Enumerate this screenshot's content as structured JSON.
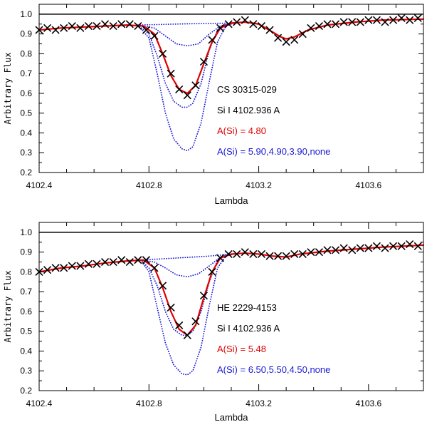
{
  "chart_data": [
    {
      "type": "line",
      "xlabel": "Lambda",
      "ylabel": "Arbitrary Flux",
      "xlim": [
        4102.4,
        4103.8
      ],
      "ylim": [
        0.2,
        1.05
      ],
      "xticks": [
        "4102.4",
        "4102.8",
        "4103.2",
        "4103.6"
      ],
      "yticks": [
        "0.2",
        "0.3",
        "0.4",
        "0.5",
        "0.6",
        "0.7",
        "0.8",
        "0.9",
        "1.0"
      ],
      "continuum": 1.0,
      "annotations": {
        "star": "CS 30315-029",
        "line": "Si I 4102.936 A",
        "best_fit": "A(Si) = 4.80",
        "trials": "A(Si) = 5.90,4.90,3.90,none"
      },
      "series": [
        {
          "name": "observed",
          "style": "x-markers",
          "color": "#000000",
          "x": [
            4102.4,
            4102.43,
            4102.46,
            4102.49,
            4102.52,
            4102.55,
            4102.58,
            4102.61,
            4102.64,
            4102.67,
            4102.7,
            4102.73,
            4102.76,
            4102.79,
            4102.82,
            4102.85,
            4102.88,
            4102.91,
            4102.94,
            4102.97,
            4103.0,
            4103.03,
            4103.06,
            4103.09,
            4103.12,
            4103.15,
            4103.18,
            4103.21,
            4103.24,
            4103.27,
            4103.3,
            4103.33,
            4103.36,
            4103.39,
            4103.42,
            4103.45,
            4103.48,
            4103.51,
            4103.54,
            4103.57,
            4103.6,
            4103.63,
            4103.66,
            4103.69,
            4103.72,
            4103.75,
            4103.78
          ],
          "y": [
            0.92,
            0.93,
            0.92,
            0.93,
            0.94,
            0.93,
            0.94,
            0.94,
            0.95,
            0.94,
            0.95,
            0.95,
            0.94,
            0.92,
            0.89,
            0.8,
            0.7,
            0.62,
            0.59,
            0.64,
            0.76,
            0.87,
            0.93,
            0.95,
            0.96,
            0.97,
            0.95,
            0.94,
            0.92,
            0.88,
            0.86,
            0.87,
            0.9,
            0.93,
            0.94,
            0.95,
            0.95,
            0.96,
            0.96,
            0.96,
            0.97,
            0.97,
            0.96,
            0.97,
            0.98,
            0.97,
            0.98
          ]
        },
        {
          "name": "best fit A(Si)=4.80",
          "style": "solid",
          "color": "#e00000",
          "x": [
            4102.4,
            4102.48,
            4102.56,
            4102.64,
            4102.72,
            4102.78,
            4102.82,
            4102.85,
            4102.88,
            4102.91,
            4102.94,
            4102.97,
            4103.0,
            4103.03,
            4103.06,
            4103.1,
            4103.15,
            4103.2,
            4103.25,
            4103.28,
            4103.3,
            4103.33,
            4103.38,
            4103.45,
            4103.55,
            4103.65,
            4103.8
          ],
          "y": [
            0.92,
            0.93,
            0.935,
            0.94,
            0.945,
            0.94,
            0.9,
            0.8,
            0.69,
            0.62,
            0.6,
            0.64,
            0.75,
            0.86,
            0.93,
            0.955,
            0.96,
            0.95,
            0.91,
            0.885,
            0.875,
            0.885,
            0.92,
            0.945,
            0.96,
            0.97,
            0.975
          ]
        },
        {
          "name": "A(Si)=5.90",
          "style": "dotted",
          "color": "#1a1ad6",
          "x": [
            4102.76,
            4102.8,
            4102.83,
            4102.86,
            4102.89,
            4102.92,
            4102.94,
            4102.96,
            4102.99,
            4103.02,
            4103.05,
            4103.08,
            4103.11
          ],
          "y": [
            0.945,
            0.88,
            0.7,
            0.5,
            0.37,
            0.32,
            0.31,
            0.33,
            0.45,
            0.66,
            0.86,
            0.94,
            0.955
          ]
        },
        {
          "name": "A(Si)=4.90",
          "style": "dotted",
          "color": "#1a1ad6",
          "x": [
            4102.76,
            4102.8,
            4102.83,
            4102.86,
            4102.89,
            4102.92,
            4102.94,
            4102.96,
            4102.99,
            4103.02,
            4103.05,
            4103.08,
            4103.11
          ],
          "y": [
            0.945,
            0.9,
            0.79,
            0.65,
            0.56,
            0.53,
            0.53,
            0.55,
            0.65,
            0.82,
            0.92,
            0.95,
            0.955
          ]
        },
        {
          "name": "A(Si)=3.90",
          "style": "dotted",
          "color": "#1a1ad6",
          "x": [
            4102.76,
            4102.82,
            4102.86,
            4102.9,
            4102.94,
            4102.98,
            4103.02,
            4103.06,
            4103.11
          ],
          "y": [
            0.945,
            0.93,
            0.89,
            0.85,
            0.84,
            0.85,
            0.9,
            0.94,
            0.955
          ]
        },
        {
          "name": "none",
          "style": "dotted",
          "color": "#1a1ad6",
          "x": [
            4102.76,
            4102.9,
            4103.0,
            4103.11
          ],
          "y": [
            0.945,
            0.95,
            0.953,
            0.955
          ]
        }
      ]
    },
    {
      "type": "line",
      "xlabel": "Lambda",
      "ylabel": "Arbitrary Flux",
      "xlim": [
        4102.4,
        4103.8
      ],
      "ylim": [
        0.2,
        1.05
      ],
      "xticks": [
        "4102.4",
        "4102.8",
        "4103.2",
        "4103.6"
      ],
      "yticks": [
        "0.2",
        "0.3",
        "0.4",
        "0.5",
        "0.6",
        "0.7",
        "0.8",
        "0.9",
        "1.0"
      ],
      "continuum": 1.0,
      "annotations": {
        "star": "HE 2229-4153",
        "line": "Si I 4102.936 A",
        "best_fit": "A(Si) = 5.48",
        "trials": "A(Si) = 6.50,5.50,4.50,none"
      },
      "series": [
        {
          "name": "observed",
          "style": "x-markers",
          "color": "#000000",
          "x": [
            4102.4,
            4102.43,
            4102.46,
            4102.49,
            4102.52,
            4102.55,
            4102.58,
            4102.61,
            4102.64,
            4102.67,
            4102.7,
            4102.73,
            4102.76,
            4102.79,
            4102.82,
            4102.85,
            4102.88,
            4102.91,
            4102.94,
            4102.97,
            4103.0,
            4103.03,
            4103.06,
            4103.09,
            4103.12,
            4103.15,
            4103.18,
            4103.21,
            4103.24,
            4103.27,
            4103.3,
            4103.33,
            4103.36,
            4103.39,
            4103.42,
            4103.45,
            4103.48,
            4103.51,
            4103.54,
            4103.57,
            4103.6,
            4103.63,
            4103.66,
            4103.69,
            4103.72,
            4103.75,
            4103.78
          ],
          "y": [
            0.8,
            0.81,
            0.82,
            0.82,
            0.83,
            0.83,
            0.84,
            0.84,
            0.85,
            0.85,
            0.86,
            0.85,
            0.86,
            0.86,
            0.82,
            0.73,
            0.62,
            0.53,
            0.48,
            0.55,
            0.68,
            0.8,
            0.87,
            0.89,
            0.89,
            0.9,
            0.89,
            0.89,
            0.88,
            0.88,
            0.88,
            0.89,
            0.89,
            0.9,
            0.9,
            0.91,
            0.91,
            0.92,
            0.91,
            0.92,
            0.92,
            0.93,
            0.92,
            0.93,
            0.93,
            0.94,
            0.93
          ]
        },
        {
          "name": "best fit A(Si)=5.48",
          "style": "solid",
          "color": "#e00000",
          "x": [
            4102.4,
            4102.48,
            4102.56,
            4102.64,
            4102.72,
            4102.78,
            4102.82,
            4102.85,
            4102.88,
            4102.91,
            4102.94,
            4102.97,
            4103.0,
            4103.03,
            4103.06,
            4103.1,
            4103.15,
            4103.2,
            4103.25,
            4103.3,
            4103.35,
            4103.45,
            4103.55,
            4103.65,
            4103.8
          ],
          "y": [
            0.8,
            0.82,
            0.83,
            0.845,
            0.855,
            0.86,
            0.82,
            0.72,
            0.6,
            0.51,
            0.48,
            0.53,
            0.67,
            0.8,
            0.87,
            0.89,
            0.895,
            0.89,
            0.88,
            0.875,
            0.89,
            0.905,
            0.915,
            0.925,
            0.935
          ]
        },
        {
          "name": "A(Si)=6.50",
          "style": "dotted",
          "color": "#1a1ad6",
          "x": [
            4102.77,
            4102.8,
            4102.83,
            4102.86,
            4102.89,
            4102.92,
            4102.94,
            4102.96,
            4102.99,
            4103.02,
            4103.05,
            4103.08,
            4103.11
          ],
          "y": [
            0.86,
            0.8,
            0.62,
            0.44,
            0.33,
            0.285,
            0.28,
            0.3,
            0.42,
            0.63,
            0.82,
            0.88,
            0.89
          ]
        },
        {
          "name": "A(Si)=5.50",
          "style": "dotted",
          "color": "#1a1ad6",
          "x": [
            4102.77,
            4102.8,
            4102.83,
            4102.86,
            4102.89,
            4102.92,
            4102.94,
            4102.96,
            4102.99,
            4103.02,
            4103.05,
            4103.08,
            4103.11
          ],
          "y": [
            0.86,
            0.82,
            0.73,
            0.6,
            0.51,
            0.48,
            0.48,
            0.5,
            0.6,
            0.75,
            0.86,
            0.885,
            0.89
          ]
        },
        {
          "name": "A(Si)=4.50",
          "style": "dotted",
          "color": "#1a1ad6",
          "x": [
            4102.77,
            4102.82,
            4102.86,
            4102.9,
            4102.94,
            4102.98,
            4103.02,
            4103.06,
            4103.11
          ],
          "y": [
            0.86,
            0.85,
            0.82,
            0.785,
            0.775,
            0.79,
            0.83,
            0.875,
            0.89
          ]
        },
        {
          "name": "none",
          "style": "dotted",
          "color": "#1a1ad6",
          "x": [
            4102.77,
            4102.9,
            4103.0,
            4103.11
          ],
          "y": [
            0.86,
            0.87,
            0.878,
            0.89
          ]
        }
      ]
    }
  ]
}
